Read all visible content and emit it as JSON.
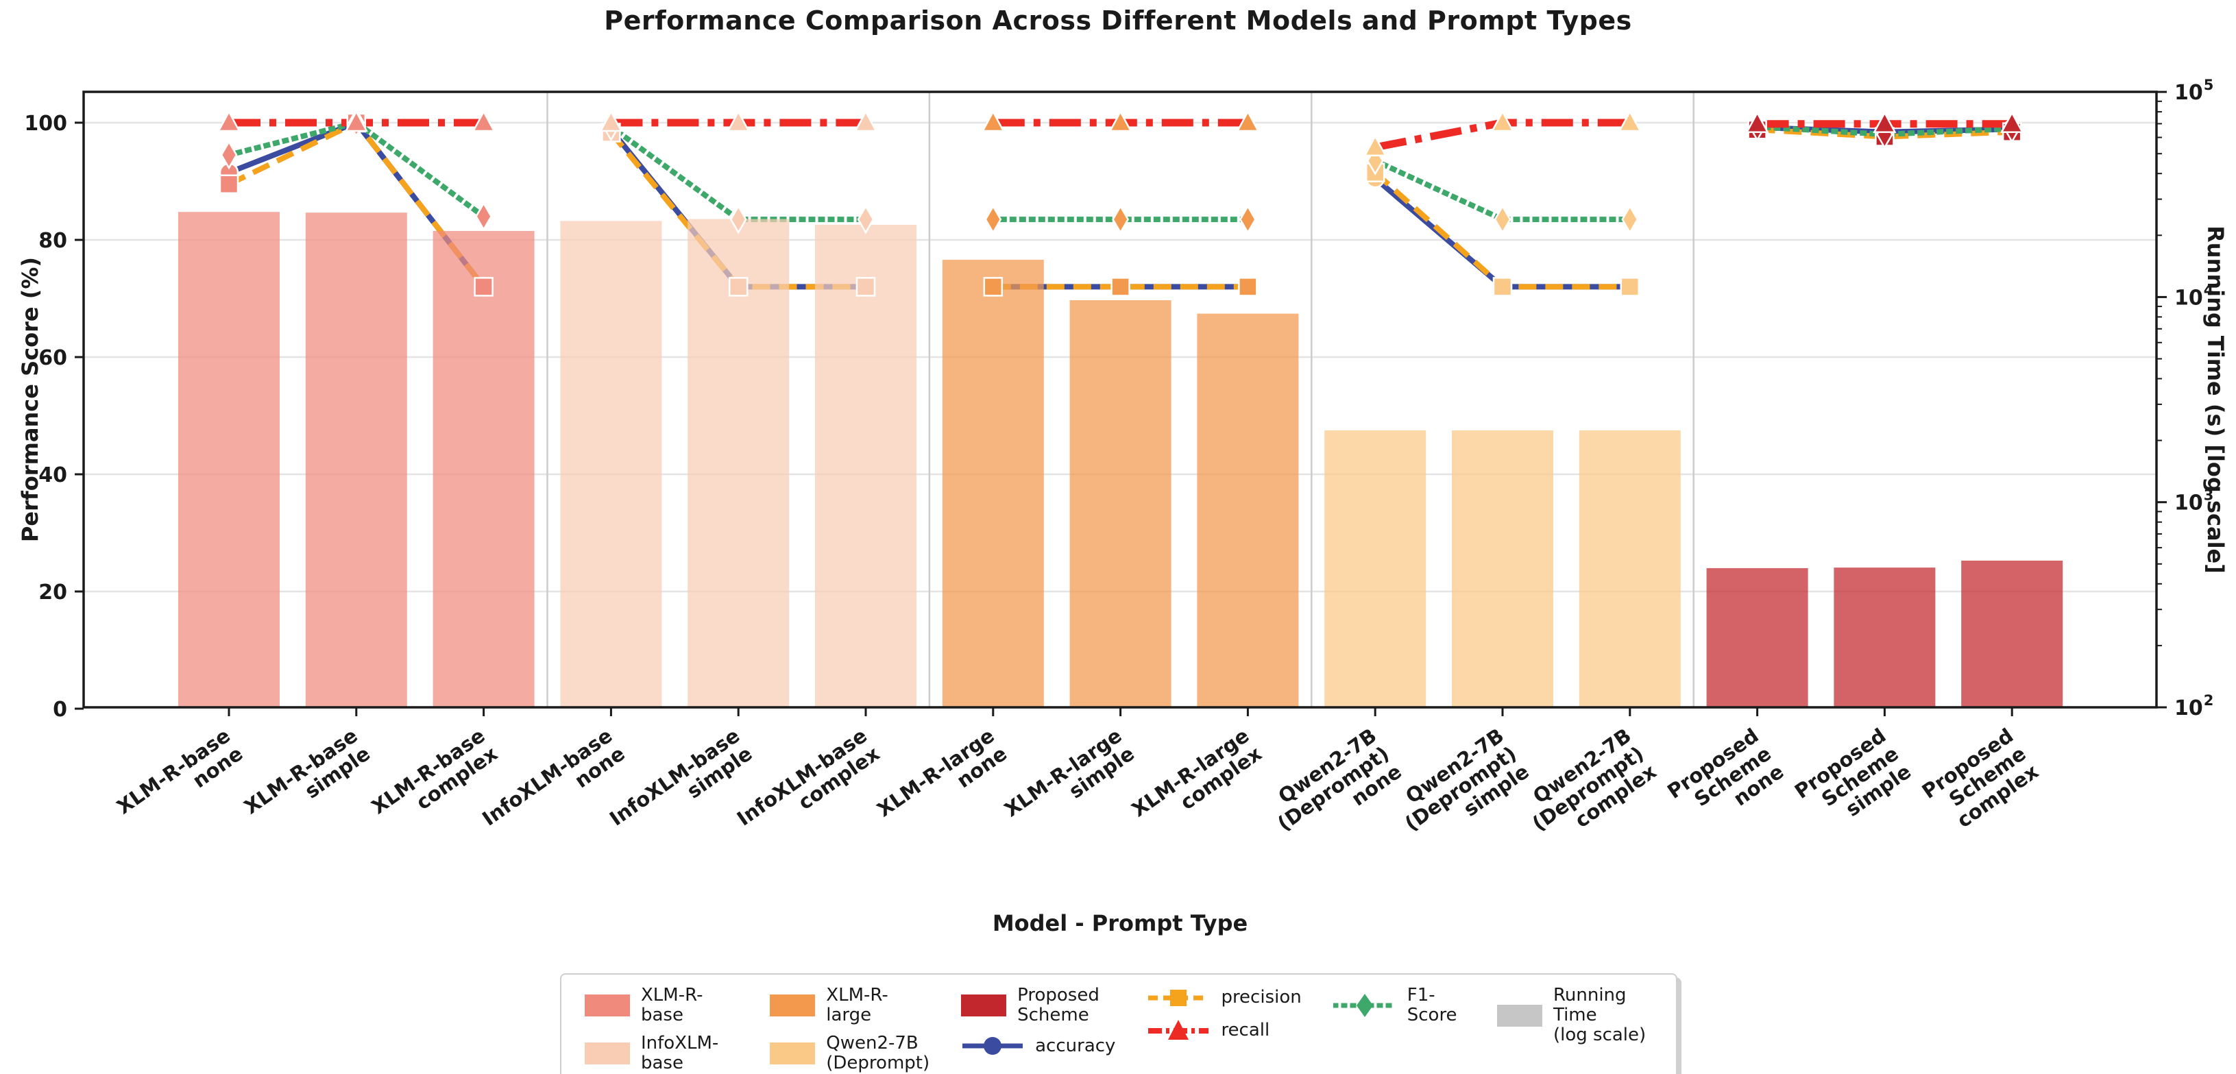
{
  "page": {
    "background": "#ffffff"
  },
  "chart_data": {
    "type": "bar+line combo (bars = running time on log right axis, lines = metrics on left axis)",
    "title": "Performance Comparison Across Different Models and Prompt Types",
    "xlabel": "Model - Prompt Type",
    "ylabel_left": "Performance Score (%)",
    "ylabel_right": "Running Time (s) [log scale]",
    "left_axis": {
      "min": 0,
      "max": 105,
      "ticks": [
        0,
        20,
        40,
        60,
        80,
        100
      ],
      "gridlines": [
        20,
        40,
        60,
        80,
        100
      ],
      "grid": true
    },
    "right_axis": {
      "scale": "log10",
      "min": 100,
      "max": 100000,
      "major_exponents": [
        2,
        3,
        4,
        5
      ]
    },
    "prompt_types": [
      "none",
      "simple",
      "complex"
    ],
    "x_tick_labels": [
      [
        "XLM-R-base",
        "none"
      ],
      [
        "XLM-R-base",
        "simple"
      ],
      [
        "XLM-R-base",
        "complex"
      ],
      [
        "InfoXLM-base",
        "none"
      ],
      [
        "InfoXLM-base",
        "simple"
      ],
      [
        "InfoXLM-base",
        "complex"
      ],
      [
        "XLM-R-large",
        "none"
      ],
      [
        "XLM-R-large",
        "simple"
      ],
      [
        "XLM-R-large",
        "complex"
      ],
      [
        "Qwen2-7B",
        "(Deprompt)",
        "none"
      ],
      [
        "Qwen2-7B",
        "(Deprompt)",
        "simple"
      ],
      [
        "Qwen2-7B",
        "(Deprompt)",
        "complex"
      ],
      [
        "Proposed",
        "Scheme",
        "none"
      ],
      [
        "Proposed",
        "Scheme",
        "simple"
      ],
      [
        "Proposed",
        "Scheme",
        "complex"
      ]
    ],
    "metrics": [
      {
        "key": "accuracy",
        "label": "accuracy",
        "color": "#3b4ca0",
        "line_style": "solid",
        "marker": "circle"
      },
      {
        "key": "precision",
        "label": "precision",
        "color": "#f5a31d",
        "line_style": "dashed",
        "marker": "square"
      },
      {
        "key": "f1",
        "label": "F1-Score",
        "color": "#3da86a",
        "line_style": "dotted",
        "marker": "diamond"
      },
      {
        "key": "recall",
        "label": "recall",
        "color": "#ee2a24",
        "line_style": "dashdot",
        "marker": "triangle"
      }
    ],
    "running_time": {
      "label": "Running Time (log scale)",
      "color": "#c6c6c6",
      "bar_opacity": 0.72
    },
    "groups": [
      {
        "model": "XLM-R-base",
        "color": "#f08a7d",
        "running_time_s": [
          26000,
          25800,
          21000
        ],
        "accuracy": [
          91.5,
          100,
          72
        ],
        "precision": [
          89.5,
          100,
          72
        ],
        "recall": [
          100,
          100,
          100
        ],
        "f1": [
          94.5,
          100,
          84
        ]
      },
      {
        "model": "InfoXLM-base",
        "color": "#f8cdb4",
        "running_time_s": [
          23500,
          24000,
          22500
        ],
        "accuracy": [
          98.8,
          72,
          72
        ],
        "precision": [
          98.3,
          72,
          72
        ],
        "recall": [
          100,
          100,
          100
        ],
        "f1": [
          99.3,
          83.5,
          83.5
        ]
      },
      {
        "model": "XLM-R-large",
        "color": "#f2994e",
        "running_time_s": [
          15200,
          9650,
          8300
        ],
        "accuracy": [
          72,
          72,
          72
        ],
        "precision": [
          72,
          72,
          72
        ],
        "recall": [
          100,
          100,
          100
        ],
        "f1": [
          83.5,
          83.5,
          83.5
        ]
      },
      {
        "model": "Qwen2-7B (Deprompt)",
        "color": "#fbc987",
        "running_time_s": [
          2240,
          2240,
          2240
        ],
        "accuracy": [
          90.5,
          72,
          72
        ],
        "precision": [
          91.5,
          72,
          72
        ],
        "recall": [
          95.8,
          100,
          100
        ],
        "f1": [
          93.5,
          83.5,
          83.5
        ]
      },
      {
        "model": "Proposed Scheme",
        "color": "#c2272d",
        "running_time_s": [
          477,
          480,
          519
        ],
        "accuracy": [
          99.2,
          98.4,
          98.9
        ],
        "precision": [
          98.8,
          97.6,
          98.4
        ],
        "recall": [
          99.8,
          99.8,
          99.8
        ],
        "f1": [
          99.3,
          98.0,
          99.0
        ]
      }
    ]
  },
  "legend": {
    "models": [
      {
        "label": "XLM-R-base",
        "color": "#f08a7d"
      },
      {
        "label": "InfoXLM-base",
        "color": "#f8cdb4"
      },
      {
        "label": "XLM-R-large",
        "color": "#f2994e"
      },
      {
        "label": "Qwen2-7B\n(Deprompt)",
        "color": "#fbc987"
      },
      {
        "label": "Proposed\nScheme",
        "color": "#c2272d"
      }
    ],
    "metrics": [
      {
        "label": "accuracy",
        "color": "#3b4ca0"
      },
      {
        "label": "precision",
        "color": "#f5a31d"
      },
      {
        "label": "recall",
        "color": "#ee2a24"
      },
      {
        "label": "F1-Score",
        "color": "#3da86a"
      }
    ],
    "running_time": {
      "label": "Running Time\n(log scale)",
      "color": "#c6c6c6"
    }
  }
}
